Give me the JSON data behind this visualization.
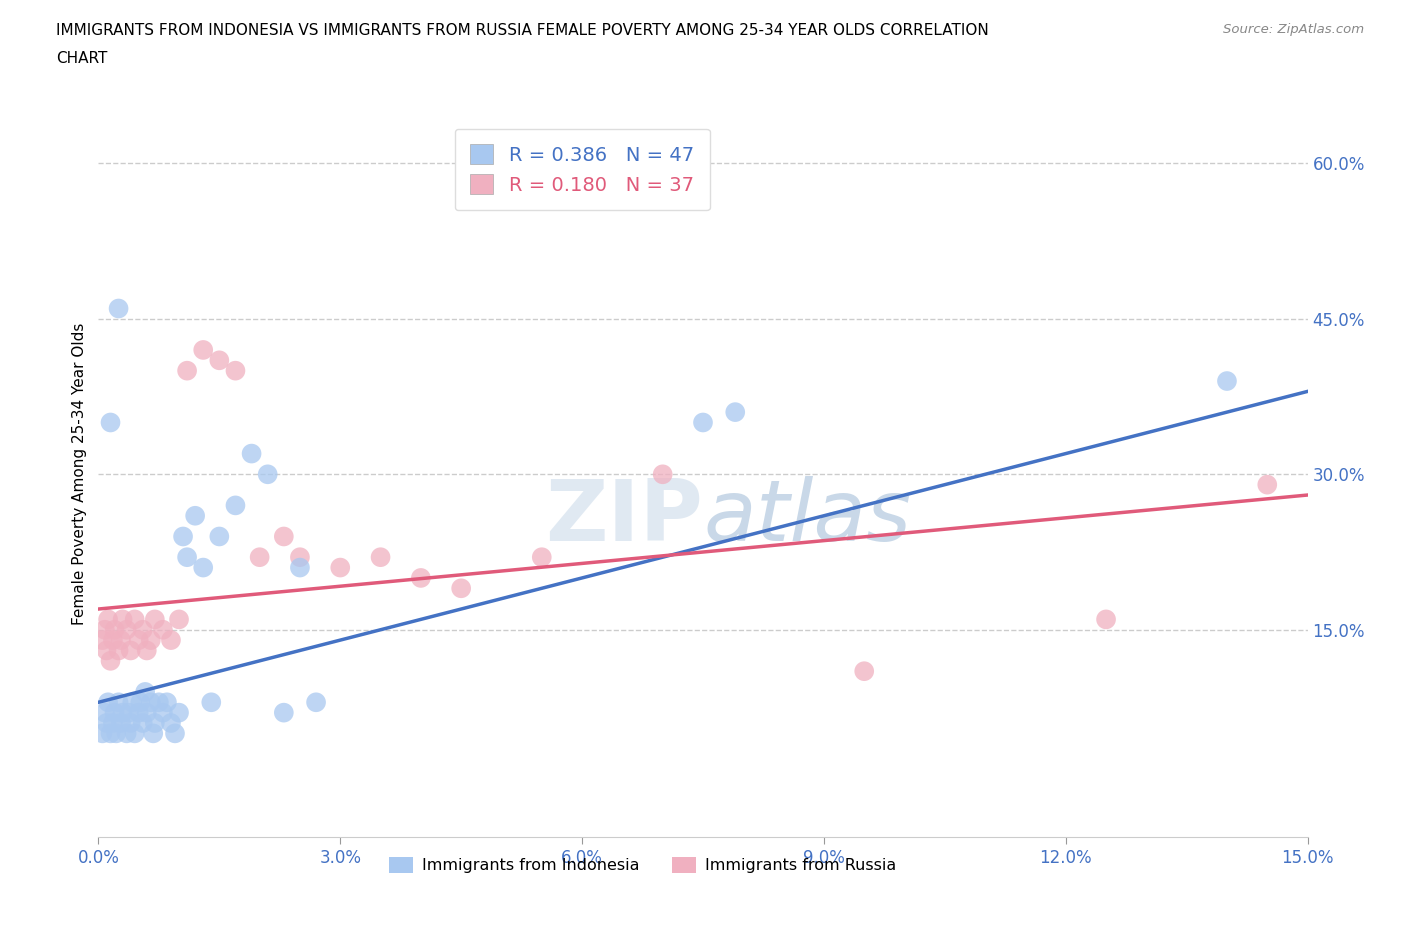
{
  "title_line1": "IMMIGRANTS FROM INDONESIA VS IMMIGRANTS FROM RUSSIA FEMALE POVERTY AMONG 25-34 YEAR OLDS CORRELATION",
  "title_line2": "CHART",
  "source": "Source: ZipAtlas.com",
  "ylabel": "Female Poverty Among 25-34 Year Olds",
  "xlim": [
    0.0,
    15.0
  ],
  "ylim": [
    -5.0,
    65.0
  ],
  "x_ticks": [
    0.0,
    3.0,
    6.0,
    9.0,
    12.0,
    15.0
  ],
  "y_ticks_right": [
    15.0,
    30.0,
    45.0,
    60.0
  ],
  "indonesia_color": "#a8c8f0",
  "russia_color": "#f0b0c0",
  "indonesia_line_color": "#4472c4",
  "russia_line_color": "#e05a7a",
  "R_indonesia": 0.386,
  "N_indonesia": 47,
  "R_russia": 0.18,
  "N_russia": 37,
  "indonesia_x": [
    0.05,
    0.08,
    0.1,
    0.12,
    0.15,
    0.18,
    0.2,
    0.22,
    0.25,
    0.28,
    0.3,
    0.35,
    0.38,
    0.4,
    0.42,
    0.45,
    0.5,
    0.52,
    0.55,
    0.58,
    0.6,
    0.65,
    0.68,
    0.7,
    0.75,
    0.8,
    0.85,
    0.9,
    0.95,
    1.0,
    1.05,
    1.1,
    1.2,
    1.3,
    1.4,
    1.5,
    1.7,
    1.9,
    2.1,
    2.3,
    2.5,
    2.7,
    0.15,
    0.25,
    7.5,
    7.9,
    14.0
  ],
  "indonesia_y": [
    5,
    7,
    6,
    8,
    5,
    6,
    7,
    5,
    8,
    6,
    7,
    5,
    7,
    6,
    8,
    5,
    7,
    8,
    6,
    9,
    7,
    8,
    5,
    6,
    8,
    7,
    8,
    6,
    5,
    7,
    24,
    22,
    26,
    21,
    8,
    24,
    27,
    32,
    30,
    7,
    21,
    8,
    35,
    46,
    35,
    36,
    39
  ],
  "russia_x": [
    0.05,
    0.08,
    0.1,
    0.12,
    0.15,
    0.18,
    0.2,
    0.25,
    0.28,
    0.3,
    0.35,
    0.4,
    0.45,
    0.5,
    0.55,
    0.6,
    0.65,
    0.7,
    0.8,
    0.9,
    1.0,
    1.1,
    1.3,
    1.5,
    1.7,
    2.0,
    2.3,
    2.5,
    3.0,
    3.5,
    4.0,
    4.5,
    5.5,
    7.0,
    9.5,
    12.5,
    14.5
  ],
  "russia_y": [
    14,
    15,
    13,
    16,
    12,
    14,
    15,
    13,
    14,
    16,
    15,
    13,
    16,
    14,
    15,
    13,
    14,
    16,
    15,
    14,
    16,
    40,
    42,
    41,
    40,
    22,
    24,
    22,
    21,
    22,
    20,
    19,
    22,
    30,
    11,
    16,
    29
  ],
  "watermark_zip": "ZIP",
  "watermark_atlas": "atlas",
  "grid_color": "#cccccc",
  "background_color": "#ffffff",
  "legend_indonesia": "Immigrants from Indonesia",
  "legend_russia": "Immigrants from Russia"
}
